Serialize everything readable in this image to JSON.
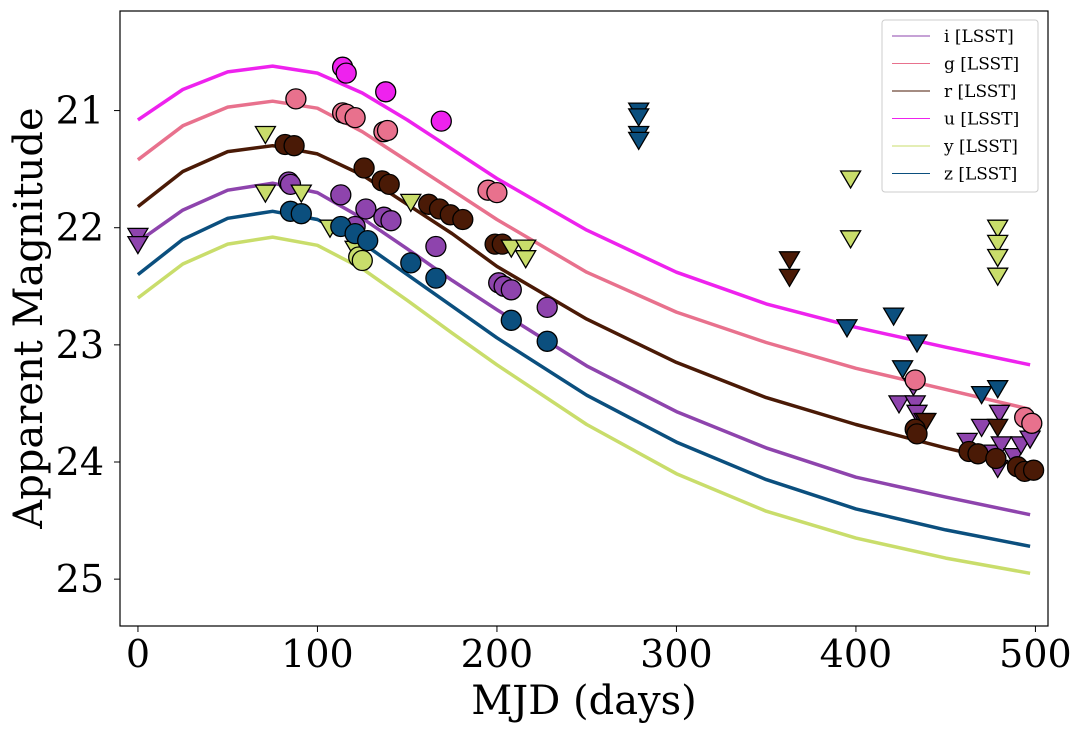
{
  "chart_data": {
    "type": "line",
    "xlabel": "MJD (days)",
    "ylabel": "Apparent Magnitude",
    "xlim": [
      -10,
      507
    ],
    "ylim": [
      25.4,
      20.15
    ],
    "y_inverted": true,
    "xticks": [
      0,
      100,
      200,
      300,
      400,
      500
    ],
    "yticks": [
      21,
      22,
      23,
      24,
      25
    ],
    "xtick_labels": [
      "0",
      "100",
      "200",
      "300",
      "400",
      "500"
    ],
    "ytick_labels": [
      "21",
      "22",
      "23",
      "24",
      "25"
    ],
    "legend": {
      "position": "top-right",
      "entries": [
        "i [LSST]",
        "g [LSST]",
        "r [LSST]",
        "u [LSST]",
        "y [LSST]",
        "z [LSST]"
      ]
    },
    "series": [
      {
        "name": "i [LSST]",
        "color": "#8e44ad",
        "model_x": [
          0,
          25,
          50,
          75,
          100,
          125,
          150,
          175,
          200,
          250,
          300,
          350,
          400,
          450,
          497
        ],
        "model_y": [
          22.12,
          21.85,
          21.68,
          21.62,
          21.7,
          21.92,
          22.18,
          22.45,
          22.7,
          23.18,
          23.57,
          23.88,
          24.13,
          24.3,
          24.45
        ],
        "detections": [
          [
            84,
            21.61
          ],
          [
            85,
            21.63
          ],
          [
            113,
            21.72
          ],
          [
            121,
            21.99
          ],
          [
            127,
            21.84
          ],
          [
            137,
            21.91
          ],
          [
            141,
            21.94
          ],
          [
            166,
            22.16
          ],
          [
            201,
            22.47
          ],
          [
            204,
            22.5
          ],
          [
            208,
            22.53
          ],
          [
            228,
            22.68
          ]
        ],
        "upper_limits": [
          [
            0,
            22.07
          ],
          [
            0,
            22.14
          ],
          [
            424,
            23.5
          ],
          [
            432,
            23.35
          ],
          [
            433,
            23.5
          ],
          [
            434,
            23.58
          ],
          [
            438,
            23.65
          ],
          [
            462,
            23.82
          ],
          [
            470,
            23.7
          ],
          [
            476,
            23.92
          ],
          [
            479,
            24.05
          ],
          [
            480,
            23.58
          ],
          [
            481,
            23.85
          ],
          [
            488,
            23.95
          ],
          [
            492,
            23.85
          ],
          [
            497,
            23.8
          ]
        ]
      },
      {
        "name": "g [LSST]",
        "color": "#e8718d",
        "model_x": [
          0,
          25,
          50,
          75,
          100,
          125,
          150,
          175,
          200,
          250,
          300,
          350,
          400,
          450,
          497
        ],
        "model_y": [
          21.42,
          21.13,
          20.97,
          20.92,
          20.98,
          21.18,
          21.43,
          21.68,
          21.93,
          22.38,
          22.72,
          22.98,
          23.2,
          23.38,
          23.55
        ],
        "detections": [
          [
            88,
            20.9
          ],
          [
            114,
            21.02
          ],
          [
            116,
            21.03
          ],
          [
            121,
            21.06
          ],
          [
            137,
            21.18
          ],
          [
            139,
            21.17
          ],
          [
            195,
            21.68
          ],
          [
            200,
            21.7
          ],
          [
            433,
            23.3
          ],
          [
            494,
            23.62
          ],
          [
            498,
            23.67
          ]
        ],
        "upper_limits": []
      },
      {
        "name": "r [LSST]",
        "color": "#4a1a06",
        "model_x": [
          0,
          25,
          50,
          75,
          100,
          125,
          150,
          175,
          200,
          250,
          300,
          350,
          400,
          450,
          497
        ],
        "model_y": [
          21.82,
          21.52,
          21.35,
          21.3,
          21.37,
          21.55,
          21.8,
          22.05,
          22.33,
          22.78,
          23.15,
          23.45,
          23.68,
          23.88,
          24.05
        ],
        "detections": [
          [
            82,
            21.29
          ],
          [
            87,
            21.3
          ],
          [
            126,
            21.49
          ],
          [
            136,
            21.6
          ],
          [
            140,
            21.63
          ],
          [
            162,
            21.8
          ],
          [
            168,
            21.84
          ],
          [
            174,
            21.89
          ],
          [
            181,
            21.93
          ],
          [
            199,
            22.14
          ],
          [
            203,
            22.14
          ],
          [
            433,
            23.72
          ],
          [
            434,
            23.76
          ],
          [
            463,
            23.91
          ],
          [
            468,
            23.93
          ],
          [
            478,
            23.97
          ],
          [
            490,
            24.04
          ],
          [
            494,
            24.08
          ],
          [
            499,
            24.07
          ]
        ],
        "upper_limits": [
          [
            363,
            22.27
          ],
          [
            363,
            22.42
          ],
          [
            439,
            23.65
          ],
          [
            479,
            23.7
          ]
        ]
      },
      {
        "name": "u [LSST]",
        "color": "#ee22ee",
        "model_x": [
          0,
          25,
          50,
          75,
          100,
          125,
          150,
          175,
          200,
          250,
          300,
          350,
          400,
          450,
          497
        ],
        "model_y": [
          21.08,
          20.82,
          20.67,
          20.62,
          20.68,
          20.85,
          21.08,
          21.33,
          21.58,
          22.02,
          22.38,
          22.65,
          22.85,
          23.02,
          23.17
        ],
        "detections": [
          [
            114,
            20.63
          ],
          [
            116,
            20.68
          ],
          [
            138,
            20.84
          ],
          [
            169,
            21.09
          ]
        ],
        "upper_limits": []
      },
      {
        "name": "y [LSST]",
        "color": "#c9dd6b",
        "model_x": [
          0,
          25,
          50,
          75,
          100,
          125,
          150,
          175,
          200,
          250,
          300,
          350,
          400,
          450,
          497
        ],
        "model_y": [
          22.6,
          22.31,
          22.14,
          22.08,
          22.15,
          22.35,
          22.62,
          22.9,
          23.17,
          23.68,
          24.1,
          24.42,
          24.65,
          24.82,
          24.95
        ],
        "detections": [
          [
            123,
            22.25
          ],
          [
            125,
            22.28
          ]
        ],
        "upper_limits": [
          [
            71,
            21.2
          ],
          [
            71,
            21.7
          ],
          [
            91,
            21.7
          ],
          [
            107,
            22.0
          ],
          [
            121,
            22.18
          ],
          [
            152,
            21.78
          ],
          [
            208,
            22.17
          ],
          [
            216,
            22.17
          ],
          [
            216,
            22.26
          ],
          [
            397,
            21.58
          ],
          [
            397,
            22.09
          ],
          [
            479,
            22.0
          ],
          [
            479,
            22.13
          ],
          [
            479,
            22.25
          ],
          [
            479,
            22.41
          ]
        ]
      },
      {
        "name": "z [LSST]",
        "color": "#0b4f7e",
        "model_x": [
          0,
          25,
          50,
          75,
          100,
          125,
          150,
          175,
          200,
          250,
          300,
          350,
          400,
          450,
          497
        ],
        "model_y": [
          22.4,
          22.1,
          21.92,
          21.86,
          21.93,
          22.13,
          22.4,
          22.67,
          22.94,
          23.43,
          23.83,
          24.15,
          24.4,
          24.58,
          24.72
        ],
        "detections": [
          [
            85,
            21.86
          ],
          [
            91,
            21.88
          ],
          [
            113,
            21.99
          ],
          [
            121,
            22.05
          ],
          [
            128,
            22.11
          ],
          [
            152,
            22.3
          ],
          [
            166,
            22.43
          ],
          [
            208,
            22.79
          ],
          [
            228,
            22.97
          ]
        ],
        "upper_limits": [
          [
            279,
            21.0
          ],
          [
            279,
            21.05
          ],
          [
            279,
            21.2
          ],
          [
            279,
            21.25
          ],
          [
            395,
            22.85
          ],
          [
            421,
            22.75
          ],
          [
            426,
            23.2
          ],
          [
            434,
            22.98
          ],
          [
            470,
            23.42
          ],
          [
            479,
            23.37
          ]
        ]
      }
    ]
  }
}
